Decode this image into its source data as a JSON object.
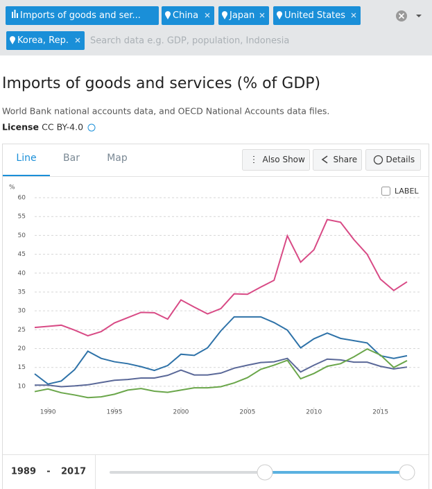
{
  "filters": {
    "indicator": "Imports of goods and ser...",
    "search_placeholder": "Search data e.g. GDP, population, Indonesia"
  },
  "header": {
    "title": "Imports of goods and services (% of GDP)",
    "source": "World Bank national accounts data, and OECD National Accounts data files.",
    "license_label": "License",
    "license_value": ": CC BY-4.0"
  },
  "tabs": [
    "Line",
    "Bar",
    "Map"
  ],
  "actions": [
    "Also Show",
    "Share",
    "Details"
  ],
  "label_toggle": "LABEL",
  "chart_data": {
    "type": "line",
    "y_unit": "%",
    "x": [
      1989,
      1990,
      1991,
      1992,
      1993,
      1994,
      1995,
      1996,
      1997,
      1998,
      1999,
      2000,
      2001,
      2002,
      2003,
      2004,
      2005,
      2006,
      2007,
      2008,
      2009,
      2010,
      2011,
      2012,
      2013,
      2014,
      2015,
      2016,
      2017
    ],
    "xlim": [
      1989,
      2017
    ],
    "xticks": [
      1990,
      1995,
      2000,
      2005,
      2010,
      2015
    ],
    "ylim": [
      3,
      60
    ],
    "yticks": [
      10,
      15,
      20,
      25,
      30,
      35,
      40,
      45,
      50,
      55,
      60
    ],
    "grid": true,
    "series": [
      {
        "name": "China",
        "color": "#2e72a8",
        "values": [
          13.3,
          10.6,
          11.4,
          14.4,
          19.3,
          17.4,
          16.5,
          16.0,
          15.2,
          14.2,
          15.5,
          18.5,
          18.2,
          20.2,
          24.7,
          28.4,
          28.4,
          28.4,
          26.9,
          24.9,
          20.2,
          22.6,
          24.1,
          22.7,
          22.1,
          21.5,
          18.1,
          17.4,
          18.1
        ]
      },
      {
        "name": "Japan",
        "color": "#5a6898",
        "values": [
          10.3,
          10.3,
          9.9,
          10.1,
          10.4,
          11.0,
          11.6,
          11.8,
          12.2,
          12.2,
          12.9,
          14.3,
          13.0,
          13.0,
          13.5,
          14.8,
          15.6,
          16.3,
          16.5,
          17.4,
          13.8,
          15.6,
          17.2,
          17.0,
          16.4,
          16.4,
          15.3,
          14.6,
          15.1
        ]
      },
      {
        "name": "United States",
        "color": "#6aa64a",
        "values": [
          8.6,
          9.3,
          8.3,
          7.7,
          7.0,
          7.2,
          7.9,
          9.0,
          9.4,
          8.7,
          8.4,
          9.0,
          9.6,
          9.6,
          9.9,
          10.9,
          12.3,
          14.5,
          15.6,
          16.9,
          12.0,
          13.4,
          15.3,
          16.0,
          17.8,
          19.9,
          18.3,
          15.0,
          16.8
        ]
      },
      {
        "name": "Korea, Rep.",
        "color": "#d84a85",
        "values": [
          25.6,
          25.9,
          26.2,
          24.9,
          23.4,
          24.5,
          26.8,
          28.2,
          29.6,
          29.5,
          27.8,
          32.9,
          31.0,
          29.2,
          30.6,
          34.5,
          34.4,
          36.3,
          38.1,
          49.9,
          42.9,
          46.2,
          54.2,
          53.5,
          48.9,
          45.0,
          38.4,
          35.4,
          37.7
        ]
      }
    ]
  },
  "slider": {
    "separator": "-"
  }
}
